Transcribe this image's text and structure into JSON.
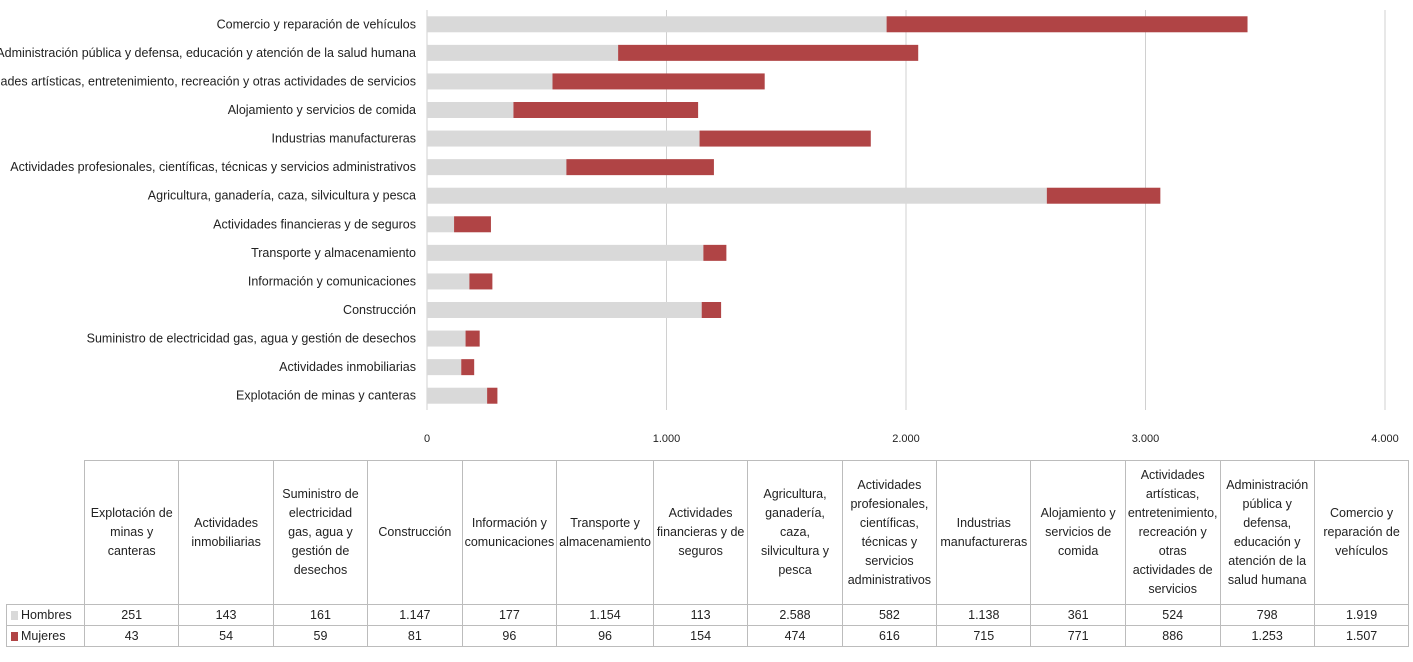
{
  "chart_data": {
    "type": "bar",
    "orientation": "horizontal",
    "stacked": true,
    "categories": [
      "Explotación de minas y canteras",
      "Actividades inmobiliarias",
      "Suministro de electricidad gas, agua y gestión de desechos",
      "Construcción",
      "Información y comunicaciones",
      "Transporte y almacenamiento",
      "Actividades financieras y de seguros",
      "Agricultura, ganadería, caza, silvicultura y pesca",
      "Actividades profesionales, científicas, técnicas y servicios administrativos",
      "Industrias manufactureras",
      "Alojamiento y servicios de comida",
      "Actividades artísticas, entretenimiento, recreación y otras actividades de servicios",
      "Administración pública y defensa, educación y atención de la salud humana",
      "Comercio y reparación de vehículos"
    ],
    "series": [
      {
        "name": "Hombres",
        "color": "#d9d9d9",
        "values": [
          251,
          143,
          161,
          1147,
          177,
          1154,
          113,
          2588,
          582,
          1138,
          361,
          524,
          798,
          1919
        ],
        "labels": [
          "251",
          "143",
          "161",
          "1.147",
          "177",
          "1.154",
          "113",
          "2.588",
          "582",
          "1.138",
          "361",
          "524",
          "798",
          "1.919"
        ]
      },
      {
        "name": "Mujeres",
        "color": "#b04445",
        "values": [
          43,
          54,
          59,
          81,
          96,
          96,
          154,
          474,
          616,
          715,
          771,
          886,
          1253,
          1507
        ],
        "labels": [
          "43",
          "54",
          "59",
          "81",
          "96",
          "96",
          "154",
          "474",
          "616",
          "715",
          "771",
          "886",
          "1.253",
          "1.507"
        ]
      }
    ],
    "xlim": [
      0,
      4000
    ],
    "xticks": [
      0,
      1000,
      2000,
      3000,
      4000
    ],
    "xtick_labels": [
      "0",
      "1.000",
      "2.000",
      "3.000",
      "4.000"
    ],
    "grid": "vertical",
    "legend": "data-table-below",
    "table_headers": [
      "Explotación de minas y canteras",
      "Actividades inmobiliarias",
      "Suministro de electricidad gas, agua y gestión de desechos",
      "Construcción",
      "Información y comunicaciones",
      "Transporte y almacenamiento",
      "Actividades financieras y de seguros",
      "Agricultura, ganadería, caza, silvicultura y pesca",
      "Actividades profesionales, científicas, técnicas y servicios administrativos",
      "Industrias manufactureras",
      "Alojamiento y servicios de comida",
      "Actividades artísticas, entretenimiento, recreación y otras actividades de servicios",
      "Administración pública y defensa, educación y atención de la salud humana",
      "Comercio y reparación de vehículos"
    ]
  }
}
